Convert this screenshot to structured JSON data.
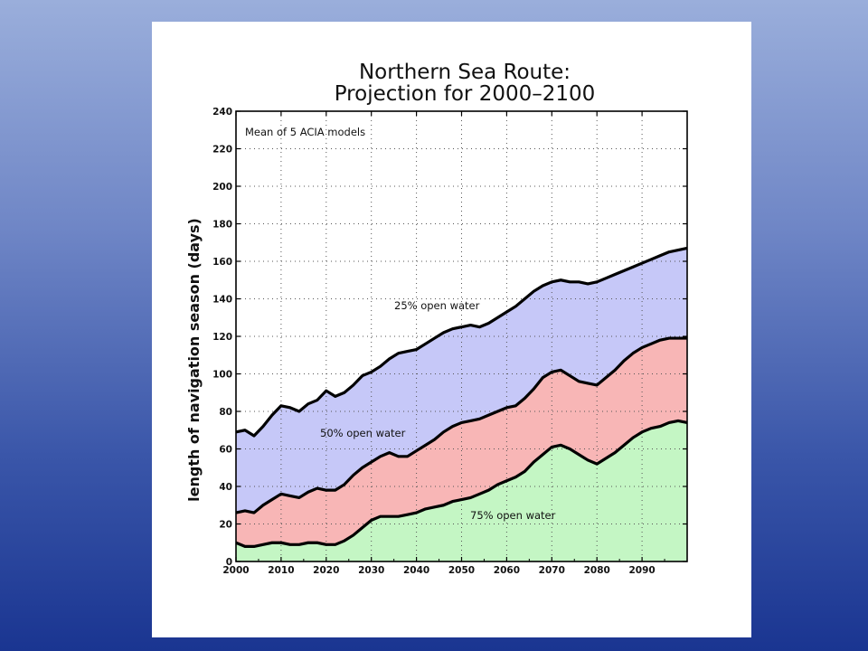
{
  "chart_data": {
    "type": "area",
    "title_lines": [
      "Northern Sea Route:",
      "Projection for 2000–2100"
    ],
    "xlabel": "",
    "ylabel": "length of navigation season (days)",
    "xlim": [
      2000,
      2100
    ],
    "ylim": [
      0,
      240
    ],
    "x_ticks": [
      2000,
      2010,
      2020,
      2030,
      2040,
      2050,
      2060,
      2070,
      2080,
      2090
    ],
    "y_ticks": [
      0,
      20,
      40,
      60,
      80,
      100,
      120,
      140,
      160,
      180,
      200,
      220,
      240
    ],
    "grid": true,
    "note": "Mean of 5 ACIA models",
    "x": [
      2000,
      2002,
      2004,
      2006,
      2008,
      2010,
      2012,
      2014,
      2016,
      2018,
      2020,
      2022,
      2024,
      2026,
      2028,
      2030,
      2032,
      2034,
      2036,
      2038,
      2040,
      2042,
      2044,
      2046,
      2048,
      2050,
      2052,
      2054,
      2056,
      2058,
      2060,
      2062,
      2064,
      2066,
      2068,
      2070,
      2072,
      2074,
      2076,
      2078,
      2080,
      2082,
      2084,
      2086,
      2088,
      2090,
      2092,
      2094,
      2096,
      2098,
      2100
    ],
    "series": [
      {
        "name": "25% open water",
        "color": "#c6c8f8",
        "values": [
          69,
          70,
          67,
          72,
          78,
          83,
          82,
          80,
          84,
          86,
          91,
          88,
          90,
          94,
          99,
          101,
          104,
          108,
          111,
          112,
          113,
          116,
          119,
          122,
          124,
          125,
          126,
          125,
          127,
          130,
          133,
          136,
          140,
          144,
          147,
          149,
          150,
          149,
          149,
          148,
          149,
          151,
          153,
          155,
          157,
          159,
          161,
          163,
          165,
          166,
          167
        ]
      },
      {
        "name": "50% open water",
        "color": "#f8b6b6",
        "values": [
          26,
          27,
          26,
          30,
          33,
          36,
          35,
          34,
          37,
          39,
          38,
          38,
          41,
          46,
          50,
          53,
          56,
          58,
          56,
          56,
          59,
          62,
          65,
          69,
          72,
          74,
          75,
          76,
          78,
          80,
          82,
          83,
          87,
          92,
          98,
          101,
          102,
          99,
          96,
          95,
          94,
          98,
          102,
          107,
          111,
          114,
          116,
          118,
          119,
          119,
          119
        ]
      },
      {
        "name": "75% open water",
        "color": "#c4f6c4",
        "values": [
          10,
          8,
          8,
          9,
          10,
          10,
          9,
          9,
          10,
          10,
          9,
          9,
          11,
          14,
          18,
          22,
          24,
          24,
          24,
          25,
          26,
          28,
          29,
          30,
          32,
          33,
          34,
          36,
          38,
          41,
          43,
          45,
          48,
          53,
          57,
          61,
          62,
          60,
          57,
          54,
          52,
          55,
          58,
          62,
          66,
          69,
          71,
          72,
          74,
          75,
          74
        ]
      }
    ]
  }
}
